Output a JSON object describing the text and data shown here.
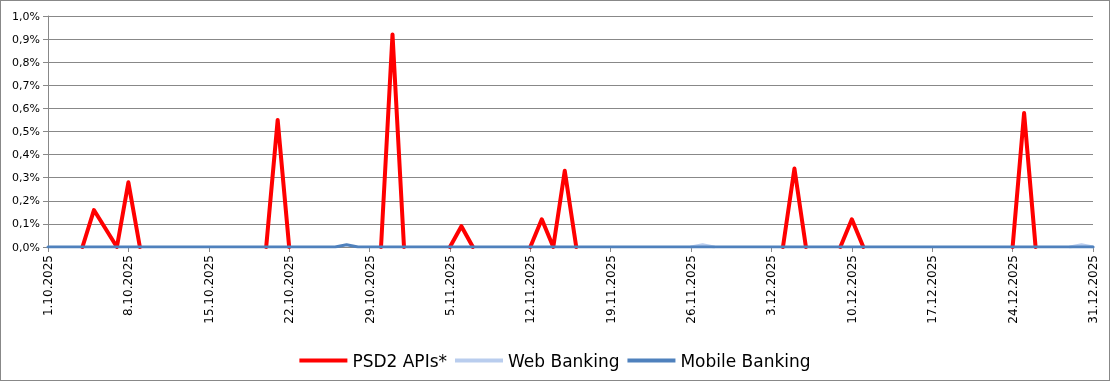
{
  "chart_data": {
    "type": "line",
    "categories": [
      "1.10.2025",
      null,
      null,
      null,
      null,
      null,
      null,
      "8.10.2025",
      null,
      null,
      null,
      null,
      null,
      null,
      "15.10.2025",
      null,
      null,
      null,
      null,
      null,
      null,
      "22.10.2025",
      null,
      null,
      null,
      null,
      null,
      null,
      "29.10.2025",
      null,
      null,
      null,
      null,
      null,
      null,
      "5.11.2025",
      null,
      null,
      null,
      null,
      null,
      null,
      "12.11.2025",
      null,
      null,
      null,
      null,
      null,
      null,
      "19.11.2025",
      null,
      null,
      null,
      null,
      null,
      null,
      "26.11.2025",
      null,
      null,
      null,
      null,
      null,
      null,
      "3.12.2025",
      null,
      null,
      null,
      null,
      null,
      null,
      "10.12.2025",
      null,
      null,
      null,
      null,
      null,
      null,
      "17.12.2025",
      null,
      null,
      null,
      null,
      null,
      null,
      "24.12.2025",
      null,
      null,
      null,
      null,
      null,
      null,
      "31.12.2025"
    ],
    "series": [
      {
        "name": "PSD2 APIs*",
        "color": "#ff0000",
        "values": [
          null,
          null,
          null,
          0,
          0.16,
          0.08,
          0,
          0.28,
          0,
          null,
          null,
          null,
          null,
          null,
          null,
          null,
          null,
          null,
          null,
          0,
          0.55,
          0,
          null,
          null,
          null,
          null,
          null,
          null,
          null,
          0,
          0.92,
          0,
          null,
          null,
          null,
          0,
          0.09,
          0,
          null,
          null,
          null,
          null,
          0,
          0.12,
          0,
          0.33,
          0,
          null,
          null,
          null,
          null,
          null,
          null,
          null,
          null,
          null,
          null,
          null,
          null,
          null,
          null,
          null,
          null,
          null,
          0,
          0.34,
          0,
          null,
          null,
          0,
          0.12,
          0,
          null,
          null,
          null,
          null,
          null,
          null,
          null,
          null,
          null,
          null,
          null,
          null,
          0,
          0.58,
          0,
          null,
          null,
          null,
          null,
          null
        ]
      },
      {
        "name": "Web Banking",
        "color": "#b9cdee",
        "values": [
          null,
          null,
          null,
          null,
          null,
          null,
          null,
          null,
          null,
          null,
          null,
          null,
          null,
          null,
          null,
          null,
          null,
          null,
          null,
          null,
          null,
          null,
          null,
          null,
          null,
          null,
          null,
          null,
          null,
          null,
          null,
          null,
          null,
          null,
          null,
          null,
          null,
          null,
          null,
          null,
          null,
          null,
          null,
          null,
          null,
          null,
          null,
          null,
          null,
          null,
          null,
          null,
          null,
          null,
          null,
          null,
          0,
          0.01,
          0,
          null,
          null,
          null,
          null,
          null,
          null,
          null,
          null,
          null,
          null,
          null,
          null,
          null,
          null,
          null,
          null,
          null,
          null,
          null,
          null,
          null,
          null,
          null,
          null,
          null,
          null,
          null,
          null,
          null,
          null,
          0,
          0.01,
          0
        ]
      },
      {
        "name": "Mobile Banking",
        "color": "#4f81bd",
        "values": [
          0,
          0,
          0,
          0,
          0,
          0,
          0,
          0,
          0,
          0,
          0,
          0,
          0,
          0,
          0,
          0,
          0,
          0,
          0,
          0,
          0,
          0,
          0,
          0,
          0,
          0,
          0.01,
          0,
          0,
          0,
          0,
          0,
          0,
          0,
          0,
          0,
          0,
          0,
          0,
          0,
          0,
          0,
          0,
          0,
          0,
          0,
          0,
          0,
          0,
          0,
          0,
          0,
          0,
          0,
          0,
          0,
          0,
          0,
          0,
          0,
          0,
          0,
          0,
          0,
          0,
          0,
          0,
          0,
          0,
          0,
          0,
          0,
          0,
          0,
          0,
          0,
          0,
          0,
          0,
          0,
          0,
          0,
          0,
          0,
          0,
          0,
          0,
          0,
          0,
          0,
          0,
          0
        ]
      }
    ],
    "ylim": [
      0,
      1.0
    ],
    "yticks": [
      {
        "value": 0,
        "label": "0,0%"
      },
      {
        "value": 0.1,
        "label": "0,1%"
      },
      {
        "value": 0.2,
        "label": "0,2%"
      },
      {
        "value": 0.3,
        "label": "0,3%"
      },
      {
        "value": 0.4,
        "label": "0,4%"
      },
      {
        "value": 0.5,
        "label": "0,5%"
      },
      {
        "value": 0.6,
        "label": "0,6%"
      },
      {
        "value": 0.7,
        "label": "0,7%"
      },
      {
        "value": 0.8,
        "label": "0,8%"
      },
      {
        "value": 0.9,
        "label": "0,9%"
      },
      {
        "value": 1.0,
        "label": "1,0%"
      }
    ],
    "grid": "y",
    "legend": "bottom",
    "marker": "none",
    "line_style": "solid"
  }
}
